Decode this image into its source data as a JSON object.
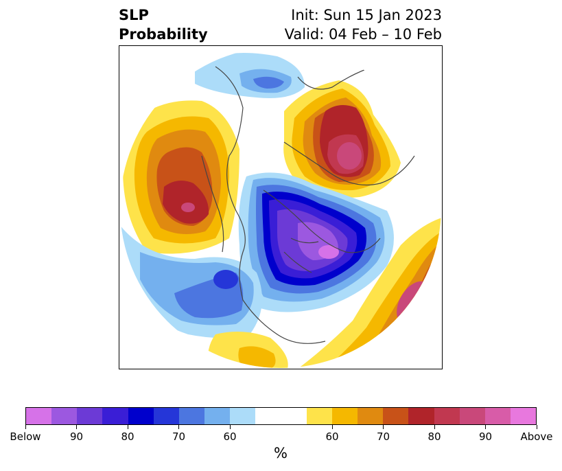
{
  "title": {
    "left_line1": "SLP",
    "left_line2": "Probability",
    "right_line1": "Init: Sun 15 Jan 2023",
    "right_line2": "Valid: 04 Feb – 10 Feb"
  },
  "colorbar": {
    "colors": [
      "#d672e8",
      "#9c58e0",
      "#6c3ad6",
      "#3a1ed6",
      "#0000cc",
      "#2536d8",
      "#4c76e0",
      "#74b0ee",
      "#acdcf9",
      "#ffffff",
      "#ffffff",
      "#fee34a",
      "#f5b800",
      "#e08a10",
      "#c85218",
      "#b0242a",
      "#c13850",
      "#c9487a",
      "#d85ca8",
      "#e878de"
    ],
    "ticks": [
      "Below",
      "90",
      "80",
      "70",
      "60",
      "60",
      "70",
      "80",
      "90",
      "Above"
    ],
    "tick_positions": [
      0,
      2,
      4,
      6,
      8,
      12,
      14,
      16,
      18,
      20
    ],
    "unit": "%"
  },
  "map": {
    "region": "Northern Hemisphere polar stereographic",
    "background": "#ffffff",
    "land_outline_color": "#444444",
    "anomalies": [
      {
        "name": "north-pacific-high",
        "sign": "above",
        "peak_percent": 95
      },
      {
        "name": "europe-scandinavia-high",
        "sign": "above",
        "peak_percent": 95
      },
      {
        "name": "north-atlantic-east-high",
        "sign": "above",
        "peak_percent": 95
      },
      {
        "name": "canada-arctic-low",
        "sign": "below",
        "peak_percent": 95
      },
      {
        "name": "north-atlantic-low",
        "sign": "below",
        "peak_percent": 80
      },
      {
        "name": "north-america-low",
        "sign": "below",
        "peak_percent": 70
      },
      {
        "name": "subtropical-atlantic-high",
        "sign": "above",
        "peak_percent": 60
      }
    ]
  }
}
